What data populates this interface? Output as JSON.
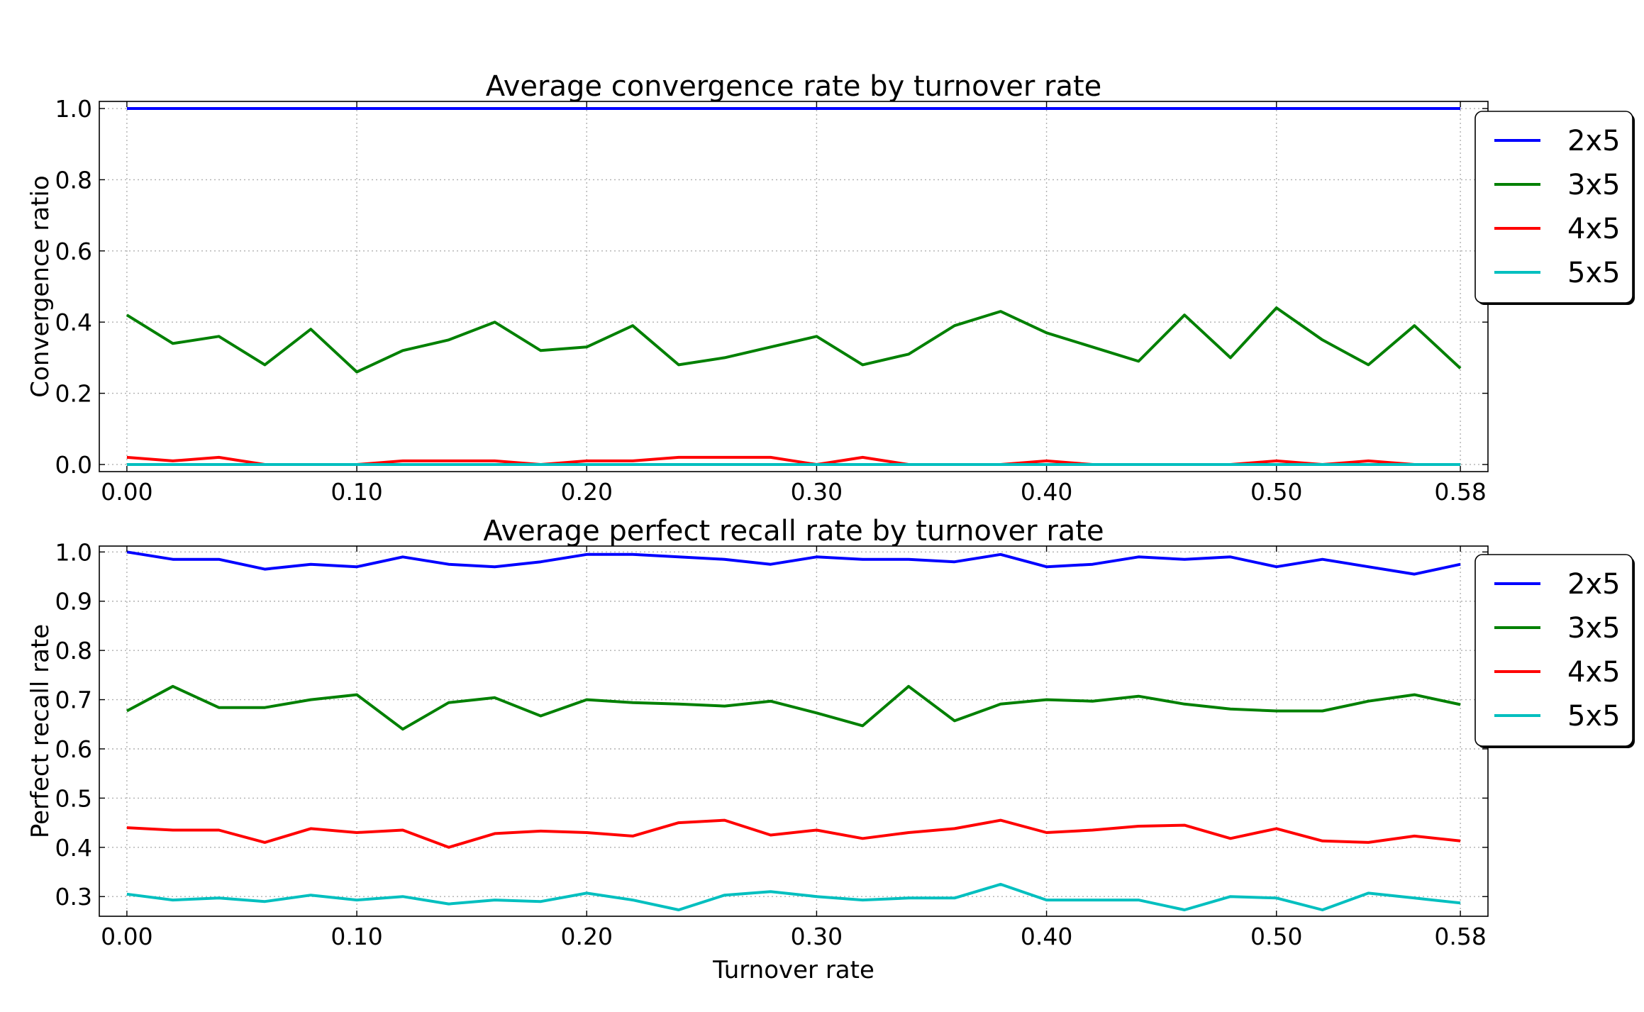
{
  "chart_data": [
    {
      "type": "line",
      "title": "Average convergence rate by turnover rate",
      "xlabel": "",
      "ylabel": "Convergence ratio",
      "xlim": [
        -0.012,
        0.592
      ],
      "ylim": [
        -0.02,
        1.02
      ],
      "xticks": [
        0.0,
        0.1,
        0.2,
        0.3,
        0.4,
        0.5,
        0.58
      ],
      "xtick_labels": [
        "0.00",
        "0.10",
        "0.20",
        "0.30",
        "0.40",
        "0.50",
        "0.58"
      ],
      "yticks": [
        0.0,
        0.2,
        0.4,
        0.6,
        0.8,
        1.0
      ],
      "ytick_labels": [
        "0.0",
        "0.2",
        "0.4",
        "0.6",
        "0.8",
        "1.0"
      ],
      "grid": true,
      "legend_position": "outside-top-right",
      "x": [
        0.0,
        0.02,
        0.04,
        0.06,
        0.08,
        0.1,
        0.12,
        0.14,
        0.16,
        0.18,
        0.2,
        0.22,
        0.24,
        0.26,
        0.28,
        0.3,
        0.32,
        0.34,
        0.36,
        0.38,
        0.4,
        0.42,
        0.44,
        0.46,
        0.48,
        0.5,
        0.52,
        0.54,
        0.56,
        0.58
      ],
      "series": [
        {
          "name": "2x5",
          "color": "#0000ff",
          "values": [
            1.0,
            1.0,
            1.0,
            1.0,
            1.0,
            1.0,
            1.0,
            1.0,
            1.0,
            1.0,
            1.0,
            1.0,
            1.0,
            1.0,
            1.0,
            1.0,
            1.0,
            1.0,
            1.0,
            1.0,
            1.0,
            1.0,
            1.0,
            1.0,
            1.0,
            1.0,
            1.0,
            1.0,
            1.0,
            1.0
          ]
        },
        {
          "name": "3x5",
          "color": "#008000",
          "values": [
            0.42,
            0.34,
            0.36,
            0.28,
            0.38,
            0.26,
            0.32,
            0.35,
            0.4,
            0.32,
            0.33,
            0.39,
            0.28,
            0.3,
            0.33,
            0.36,
            0.28,
            0.31,
            0.39,
            0.43,
            0.37,
            0.33,
            0.29,
            0.42,
            0.3,
            0.44,
            0.35,
            0.28,
            0.39,
            0.27
          ]
        },
        {
          "name": "4x5",
          "color": "#ff0000",
          "values": [
            0.02,
            0.01,
            0.02,
            0.0,
            0.0,
            0.0,
            0.01,
            0.01,
            0.01,
            0.0,
            0.01,
            0.01,
            0.02,
            0.02,
            0.02,
            0.0,
            0.02,
            0.0,
            0.0,
            0.0,
            0.01,
            0.0,
            0.0,
            0.0,
            0.0,
            0.01,
            0.0,
            0.01,
            0.0,
            0.0
          ]
        },
        {
          "name": "5x5",
          "color": "#00bfbf",
          "values": [
            0.0,
            0.0,
            0.0,
            0.0,
            0.0,
            0.0,
            0.0,
            0.0,
            0.0,
            0.0,
            0.0,
            0.0,
            0.0,
            0.0,
            0.0,
            0.0,
            0.0,
            0.0,
            0.0,
            0.0,
            0.0,
            0.0,
            0.0,
            0.0,
            0.0,
            0.0,
            0.0,
            0.0,
            0.0,
            0.0
          ]
        }
      ]
    },
    {
      "type": "line",
      "title": "Average perfect recall rate by turnover rate",
      "xlabel": "Turnover rate",
      "ylabel": "Perfect recall rate",
      "xlim": [
        -0.012,
        0.592
      ],
      "ylim": [
        0.26,
        1.012
      ],
      "xticks": [
        0.0,
        0.1,
        0.2,
        0.3,
        0.4,
        0.5,
        0.58
      ],
      "xtick_labels": [
        "0.00",
        "0.10",
        "0.20",
        "0.30",
        "0.40",
        "0.50",
        "0.58"
      ],
      "yticks": [
        0.3,
        0.4,
        0.5,
        0.6,
        0.7,
        0.8,
        0.9,
        1.0
      ],
      "ytick_labels": [
        "0.3",
        "0.4",
        "0.5",
        "0.6",
        "0.7",
        "0.8",
        "0.9",
        "1.0"
      ],
      "grid": true,
      "legend_position": "outside-top-right",
      "x": [
        0.0,
        0.02,
        0.04,
        0.06,
        0.08,
        0.1,
        0.12,
        0.14,
        0.16,
        0.18,
        0.2,
        0.22,
        0.24,
        0.26,
        0.28,
        0.3,
        0.32,
        0.34,
        0.36,
        0.38,
        0.4,
        0.42,
        0.44,
        0.46,
        0.48,
        0.5,
        0.52,
        0.54,
        0.56,
        0.58
      ],
      "series": [
        {
          "name": "2x5",
          "color": "#0000ff",
          "values": [
            1.0,
            0.985,
            0.985,
            0.965,
            0.975,
            0.97,
            0.99,
            0.975,
            0.97,
            0.98,
            0.995,
            0.995,
            0.99,
            0.985,
            0.975,
            0.99,
            0.985,
            0.985,
            0.98,
            0.995,
            0.97,
            0.975,
            0.99,
            0.985,
            0.99,
            0.97,
            0.985,
            0.97,
            0.955,
            0.975
          ]
        },
        {
          "name": "3x5",
          "color": "#008000",
          "values": [
            0.677,
            0.727,
            0.684,
            0.684,
            0.7,
            0.71,
            0.64,
            0.694,
            0.704,
            0.667,
            0.7,
            0.694,
            0.691,
            0.687,
            0.697,
            0.673,
            0.647,
            0.727,
            0.657,
            0.691,
            0.7,
            0.697,
            0.707,
            0.691,
            0.681,
            0.677,
            0.677,
            0.697,
            0.71,
            0.69
          ]
        },
        {
          "name": "4x5",
          "color": "#ff0000",
          "values": [
            0.44,
            0.435,
            0.435,
            0.41,
            0.438,
            0.43,
            0.435,
            0.4,
            0.428,
            0.433,
            0.43,
            0.423,
            0.45,
            0.455,
            0.425,
            0.435,
            0.418,
            0.43,
            0.438,
            0.455,
            0.43,
            0.435,
            0.443,
            0.445,
            0.418,
            0.438,
            0.413,
            0.41,
            0.423,
            0.413
          ]
        },
        {
          "name": "5x5",
          "color": "#00bfbf",
          "values": [
            0.305,
            0.293,
            0.297,
            0.29,
            0.303,
            0.293,
            0.3,
            0.285,
            0.293,
            0.29,
            0.307,
            0.293,
            0.273,
            0.303,
            0.31,
            0.3,
            0.293,
            0.297,
            0.297,
            0.325,
            0.293,
            0.293,
            0.293,
            0.273,
            0.3,
            0.297,
            0.273,
            0.307,
            0.297,
            0.287
          ]
        }
      ]
    }
  ]
}
